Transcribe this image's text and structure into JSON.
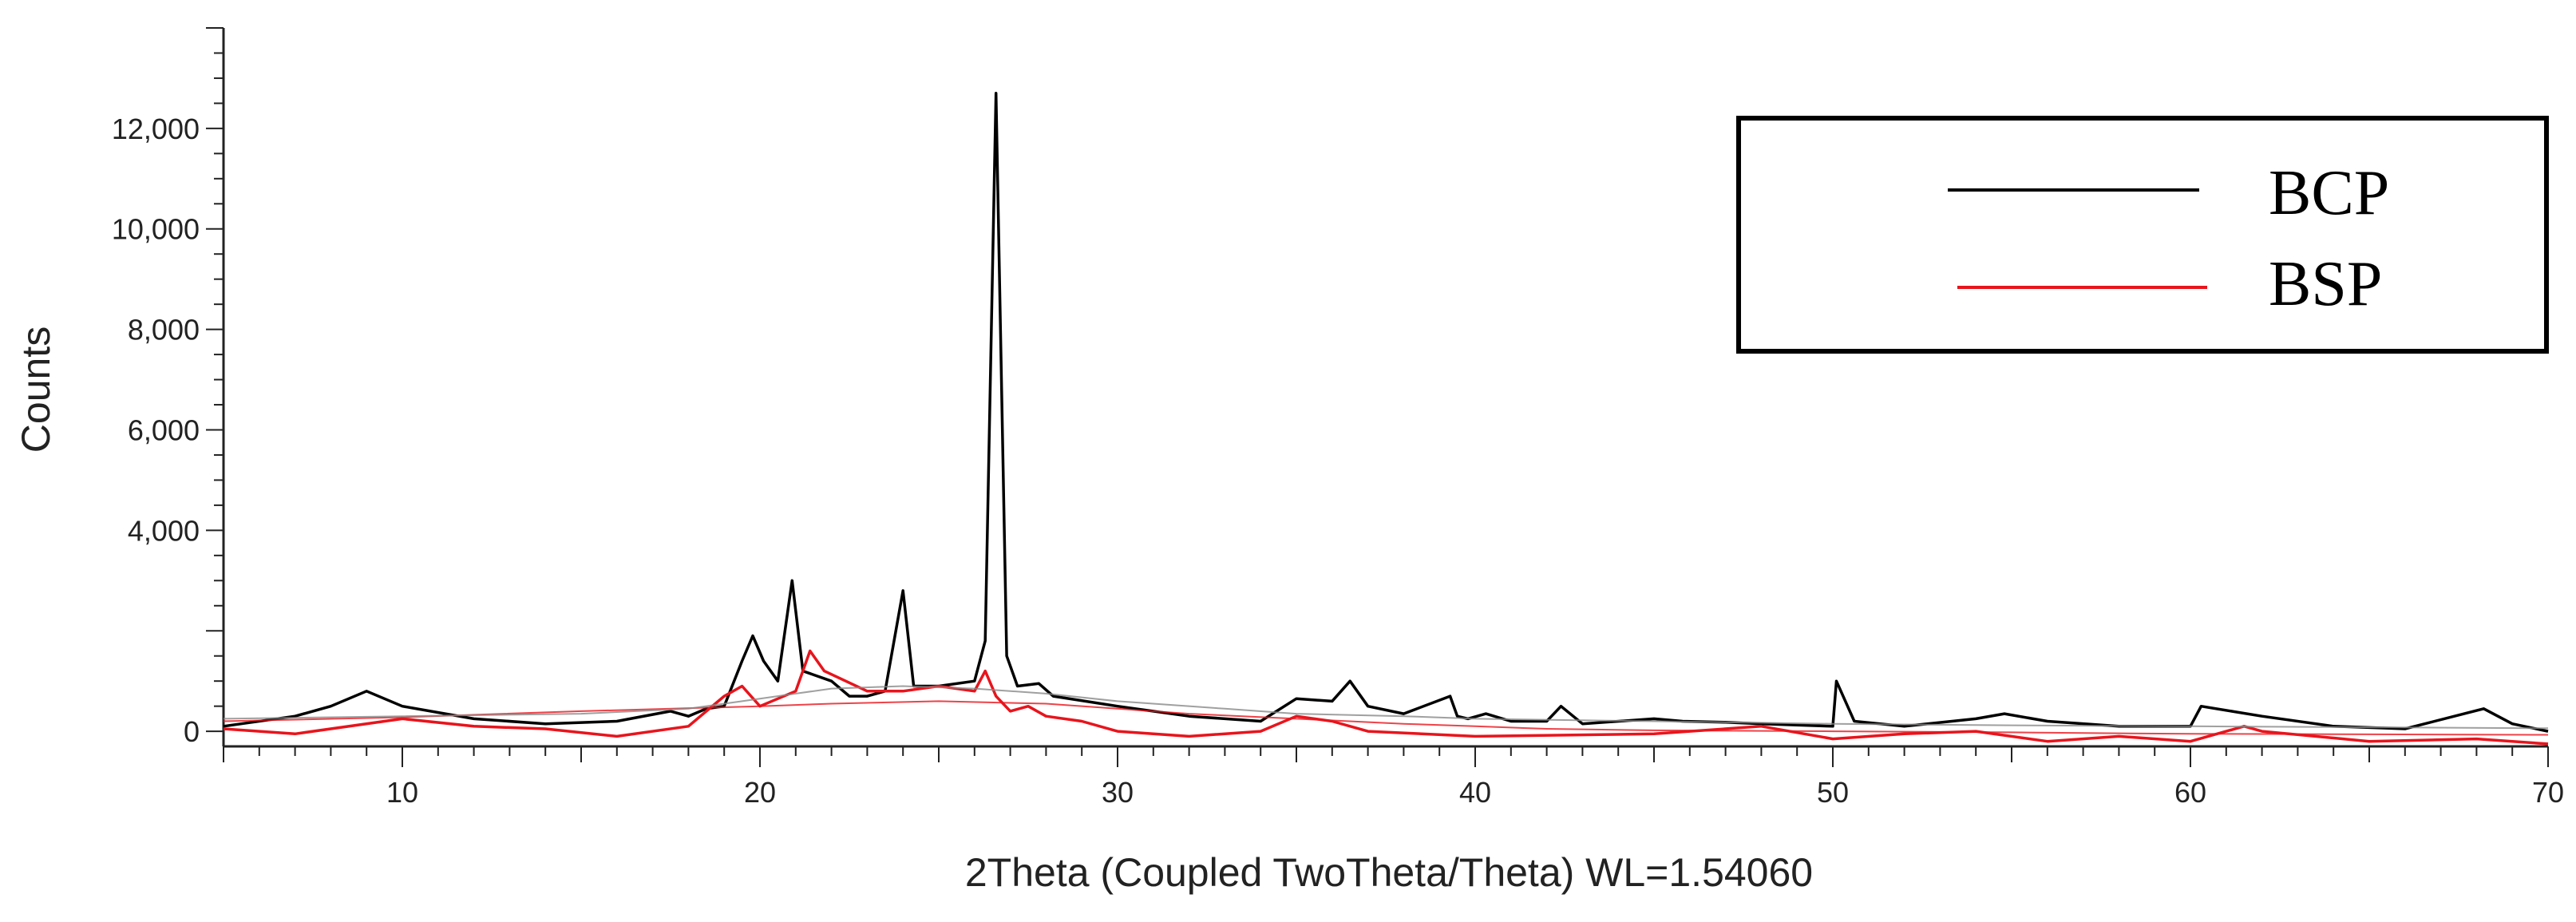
{
  "chart_data": {
    "type": "line",
    "xlabel": "2Theta (Coupled TwoTheta/Theta) WL=1.54060",
    "ylabel": "Counts",
    "xlim": [
      5,
      70
    ],
    "ylim": [
      -300,
      14000
    ],
    "x_ticks": [
      10,
      20,
      30,
      40,
      50,
      60,
      70
    ],
    "y_ticks": [
      {
        "value": 0,
        "label": "0"
      },
      {
        "value": 4000,
        "label": "4,000"
      },
      {
        "value": 6000,
        "label": "6,000"
      },
      {
        "value": 8000,
        "label": "8,000"
      },
      {
        "value": 10000,
        "label": "10,000"
      },
      {
        "value": 12000,
        "label": "12,000"
      }
    ],
    "legend_position": "top-right",
    "grid": false,
    "series": [
      {
        "name": "BCP",
        "color": "#000000",
        "x": [
          5,
          7,
          8,
          9,
          10,
          12,
          14,
          16,
          17.5,
          18,
          18.5,
          19,
          19.5,
          19.8,
          20.1,
          20.5,
          20.9,
          21.2,
          22,
          22.5,
          23,
          23.5,
          24,
          24.3,
          25,
          26,
          26.3,
          26.6,
          26.9,
          27.2,
          27.8,
          28.2,
          30,
          32,
          34,
          35,
          36,
          36.5,
          37,
          38,
          39.3,
          39.5,
          39.8,
          40.3,
          41,
          42,
          42.4,
          43,
          45,
          45.8,
          47,
          48,
          50,
          50.1,
          50.6,
          52,
          54,
          54.8,
          56,
          58,
          60,
          60.3,
          62,
          64,
          66,
          68.2,
          69,
          70
        ],
        "values": [
          100,
          300,
          500,
          800,
          500,
          250,
          150,
          200,
          400,
          300,
          450,
          500,
          1400,
          1900,
          1400,
          1000,
          3000,
          1200,
          1000,
          700,
          700,
          800,
          2800,
          900,
          900,
          1000,
          1800,
          12700,
          1500,
          900,
          950,
          700,
          500,
          300,
          200,
          650,
          600,
          1000,
          500,
          350,
          700,
          300,
          250,
          350,
          200,
          200,
          500,
          150,
          250,
          200,
          180,
          150,
          100,
          1000,
          200,
          100,
          250,
          350,
          200,
          100,
          100,
          500,
          300,
          100,
          50,
          450,
          150,
          0
        ]
      },
      {
        "name": "BSP",
        "color": "#e8141c",
        "x": [
          5,
          7,
          10,
          12,
          14,
          16,
          18,
          19,
          19.5,
          20,
          21,
          21.4,
          21.8,
          23,
          24,
          25,
          26,
          26.3,
          26.6,
          27,
          27.5,
          28,
          29,
          30,
          32,
          34,
          35,
          36,
          37,
          40,
          45,
          48,
          50,
          52,
          54,
          56,
          58,
          60,
          61.5,
          62,
          65,
          68,
          70
        ],
        "values": [
          50,
          -50,
          250,
          100,
          50,
          -100,
          100,
          700,
          900,
          500,
          800,
          1600,
          1200,
          800,
          800,
          900,
          800,
          1200,
          700,
          400,
          500,
          300,
          200,
          0,
          -100,
          0,
          300,
          200,
          0,
          -100,
          -50,
          100,
          -150,
          -50,
          0,
          -200,
          -100,
          -200,
          100,
          0,
          -200,
          -150,
          -250
        ]
      },
      {
        "color": "#e8141c",
        "values": [
          200,
          280,
          400,
          500,
          550,
          600,
          550,
          450,
          350,
          250,
          150,
          100,
          50,
          20,
          0,
          -20,
          -40,
          -50,
          -60,
          -70
        ],
        "x": [
          5,
          10,
          15,
          20,
          22,
          25,
          28,
          30,
          32,
          35,
          38,
          40,
          42,
          45,
          50,
          55,
          58,
          60,
          65,
          70
        ]
      },
      {
        "color": "#888888",
        "values": [
          250,
          300,
          350,
          450,
          650,
          750,
          850,
          900,
          850,
          750,
          600,
          450,
          350,
          300,
          250,
          200,
          150,
          120,
          100,
          60
        ],
        "x": [
          5,
          10,
          15,
          18,
          20,
          21,
          22,
          24,
          26,
          28,
          30,
          33,
          35,
          38,
          40,
          45,
          50,
          55,
          60,
          70
        ]
      }
    ]
  }
}
